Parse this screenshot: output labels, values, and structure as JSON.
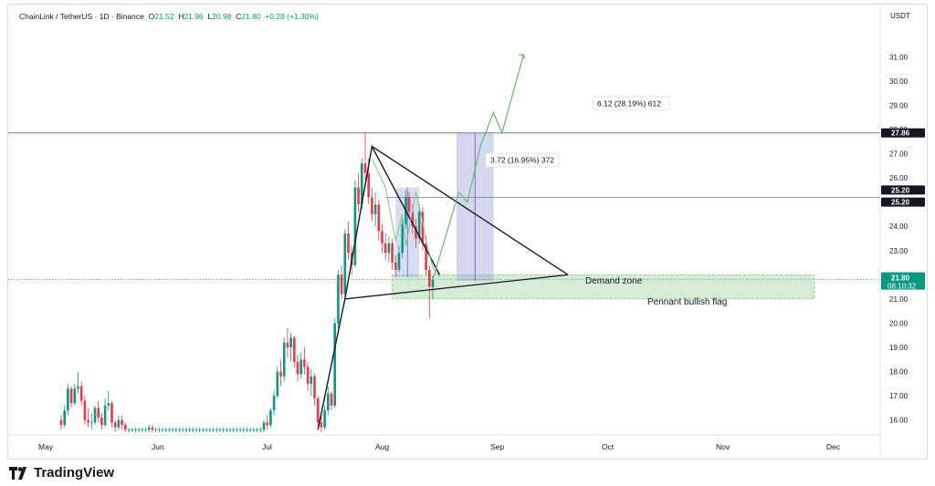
{
  "header": {
    "symbol": "ChainLink / TetherUS · 1D · Binance",
    "open_label": "O",
    "open": "21.52",
    "high_label": "H",
    "high": "21.96",
    "low_label": "L",
    "low": "20.98",
    "close_label": "C",
    "close": "21.80",
    "change": "+0.28 (+1.30%)"
  },
  "brand": {
    "name": "TradingView"
  },
  "chart_data": {
    "type": "candlestick",
    "quote_currency": "USDT",
    "ylim": [
      15.5,
      31.5
    ],
    "y_ticks": [
      "16.00",
      "17.00",
      "18.00",
      "19.00",
      "20.00",
      "21.00",
      "22.00",
      "23.00",
      "24.00",
      "25.00",
      "26.00",
      "27.00",
      "28.00",
      "29.00",
      "30.00",
      "31.00"
    ],
    "x_ticks": [
      "May",
      "Jun",
      "Jul",
      "Aug",
      "Sep",
      "Oct",
      "Nov",
      "Dec"
    ],
    "last_price": "21.80",
    "countdown": "08:10:32",
    "levels": [
      {
        "value": 27.86,
        "label": "27.86"
      },
      {
        "value": 25.2,
        "label": "25.20"
      },
      {
        "value": 25.2,
        "label": "25.20"
      }
    ],
    "annotations": [
      {
        "text": "3.72 (16.95%) 372"
      },
      {
        "text": "6.12 (28.19%) 612"
      },
      {
        "text": "Demand zone"
      },
      {
        "text": "Pennant bullish flag"
      }
    ],
    "demand_zone": [
      21.0,
      22.0
    ],
    "candles": [
      [
        16.0,
        16.2,
        15.6,
        15.8
      ],
      [
        15.8,
        16.6,
        15.7,
        16.4
      ],
      [
        16.4,
        17.5,
        16.2,
        17.3
      ],
      [
        17.3,
        17.4,
        16.5,
        16.7
      ],
      [
        16.7,
        17.5,
        16.6,
        17.3
      ],
      [
        17.3,
        18.0,
        17.1,
        17.4
      ],
      [
        17.4,
        17.6,
        16.6,
        16.8
      ],
      [
        16.8,
        17.0,
        15.8,
        16.0
      ],
      [
        16.0,
        16.5,
        15.7,
        15.9
      ],
      [
        15.9,
        16.3,
        15.6,
        15.9
      ],
      [
        15.9,
        16.6,
        15.8,
        16.5
      ],
      [
        16.5,
        16.8,
        15.9,
        16.1
      ],
      [
        16.1,
        16.3,
        15.6,
        15.8
      ],
      [
        15.8,
        16.9,
        15.7,
        16.6
      ],
      [
        16.6,
        17.2,
        16.4,
        16.7
      ],
      [
        16.7,
        16.8,
        15.7,
        15.9
      ],
      [
        15.9,
        16.0,
        15.5,
        15.7
      ],
      [
        15.7,
        16.2,
        15.6,
        16.0
      ],
      [
        16.0,
        16.2,
        15.6,
        15.8
      ],
      [
        15.8,
        15.9,
        15.5,
        15.6
      ],
      [
        15.6,
        15.7,
        15.5,
        15.6
      ],
      [
        15.6,
        15.7,
        15.5,
        15.6
      ],
      [
        15.6,
        15.7,
        15.5,
        15.6
      ],
      [
        15.6,
        15.7,
        15.5,
        15.6
      ],
      [
        15.6,
        15.7,
        15.5,
        15.6
      ],
      [
        15.6,
        15.7,
        15.5,
        15.6
      ],
      [
        15.6,
        15.8,
        15.5,
        15.7
      ],
      [
        15.7,
        15.8,
        15.5,
        15.6
      ],
      [
        15.6,
        15.7,
        15.5,
        15.6
      ],
      [
        15.6,
        15.7,
        15.5,
        15.6
      ],
      [
        15.6,
        15.7,
        15.5,
        15.6
      ],
      [
        15.6,
        15.7,
        15.5,
        15.6
      ],
      [
        15.6,
        15.7,
        15.5,
        15.6
      ],
      [
        15.6,
        15.7,
        15.5,
        15.6
      ],
      [
        15.6,
        15.7,
        15.5,
        15.6
      ],
      [
        15.6,
        15.7,
        15.5,
        15.6
      ],
      [
        15.6,
        15.7,
        15.5,
        15.6
      ],
      [
        15.6,
        15.7,
        15.5,
        15.6
      ],
      [
        15.6,
        15.7,
        15.5,
        15.6
      ],
      [
        15.6,
        15.7,
        15.5,
        15.6
      ],
      [
        15.6,
        15.7,
        15.5,
        15.6
      ],
      [
        15.6,
        15.7,
        15.5,
        15.6
      ],
      [
        15.6,
        15.7,
        15.5,
        15.6
      ],
      [
        15.6,
        15.7,
        15.5,
        15.6
      ],
      [
        15.6,
        15.7,
        15.5,
        15.6
      ],
      [
        15.6,
        15.7,
        15.5,
        15.6
      ],
      [
        15.6,
        15.7,
        15.5,
        15.6
      ],
      [
        15.6,
        15.7,
        15.5,
        15.6
      ],
      [
        15.6,
        15.7,
        15.5,
        15.6
      ],
      [
        15.6,
        15.7,
        15.5,
        15.6
      ],
      [
        15.6,
        15.7,
        15.5,
        15.6
      ],
      [
        15.6,
        15.7,
        15.5,
        15.6
      ],
      [
        15.6,
        15.7,
        15.5,
        15.6
      ],
      [
        15.6,
        15.7,
        15.5,
        15.6
      ],
      [
        15.6,
        15.7,
        15.5,
        15.6
      ],
      [
        15.6,
        15.7,
        15.5,
        15.6
      ],
      [
        15.6,
        15.7,
        15.5,
        15.6
      ],
      [
        15.6,
        15.7,
        15.5,
        15.6
      ],
      [
        15.6,
        15.7,
        15.5,
        15.6
      ],
      [
        15.6,
        15.7,
        15.5,
        15.6
      ],
      [
        15.6,
        16.0,
        15.5,
        15.9
      ],
      [
        15.9,
        16.2,
        15.6,
        15.8
      ],
      [
        15.8,
        16.5,
        15.7,
        16.4
      ],
      [
        16.4,
        17.2,
        16.2,
        17.0
      ],
      [
        17.0,
        18.2,
        16.9,
        18.0
      ],
      [
        18.0,
        18.5,
        17.4,
        17.8
      ],
      [
        17.8,
        19.4,
        17.6,
        19.2
      ],
      [
        19.2,
        19.8,
        18.6,
        19.0
      ],
      [
        19.0,
        19.6,
        18.4,
        19.4
      ],
      [
        19.4,
        19.5,
        18.2,
        18.4
      ],
      [
        18.4,
        18.7,
        17.6,
        17.9
      ],
      [
        17.9,
        18.8,
        17.7,
        18.5
      ],
      [
        18.5,
        19.0,
        17.9,
        18.2
      ],
      [
        18.2,
        18.4,
        17.2,
        17.5
      ],
      [
        17.5,
        18.1,
        17.0,
        17.8
      ],
      [
        17.8,
        17.9,
        16.6,
        16.9
      ],
      [
        16.9,
        17.0,
        15.7,
        15.9
      ],
      [
        15.9,
        16.3,
        15.5,
        15.7
      ],
      [
        15.7,
        16.6,
        15.6,
        16.4
      ],
      [
        16.4,
        17.4,
        16.2,
        17.1
      ],
      [
        17.1,
        17.2,
        16.4,
        16.6
      ],
      [
        16.6,
        20.2,
        16.5,
        20.0
      ],
      [
        20.0,
        22.2,
        19.8,
        22.0
      ],
      [
        22.0,
        22.4,
        21.0,
        21.2
      ],
      [
        21.2,
        23.9,
        21.1,
        23.7
      ],
      [
        23.7,
        24.2,
        22.6,
        22.9
      ],
      [
        22.9,
        23.2,
        22.0,
        22.4
      ],
      [
        22.4,
        25.9,
        22.3,
        25.6
      ],
      [
        25.6,
        26.2,
        24.6,
        24.9
      ],
      [
        24.9,
        26.8,
        24.7,
        26.6
      ],
      [
        26.6,
        27.9,
        25.9,
        26.2
      ],
      [
        26.2,
        26.8,
        24.9,
        25.2
      ],
      [
        25.2,
        25.6,
        24.2,
        24.5
      ],
      [
        24.5,
        25.4,
        24.0,
        24.9
      ],
      [
        24.9,
        25.1,
        23.4,
        23.8
      ],
      [
        23.8,
        24.1,
        22.9,
        23.3
      ],
      [
        23.3,
        23.7,
        22.6,
        22.9
      ],
      [
        22.9,
        23.6,
        22.5,
        23.3
      ],
      [
        23.3,
        23.5,
        22.2,
        22.5
      ],
      [
        22.5,
        22.8,
        21.9,
        22.2
      ],
      [
        22.2,
        23.2,
        22.1,
        22.9
      ],
      [
        22.9,
        24.3,
        22.7,
        24.1
      ],
      [
        24.1,
        25.5,
        23.9,
        25.2
      ],
      [
        25.2,
        25.4,
        24.3,
        24.6
      ],
      [
        24.6,
        24.9,
        23.7,
        24.0
      ],
      [
        24.0,
        24.3,
        23.1,
        23.5
      ],
      [
        23.5,
        24.9,
        23.3,
        24.6
      ],
      [
        24.6,
        24.8,
        23.0,
        23.3
      ],
      [
        23.3,
        23.6,
        22.0,
        22.2
      ],
      [
        22.2,
        22.4,
        20.2,
        21.5
      ],
      [
        21.5,
        21.96,
        20.98,
        21.8
      ]
    ],
    "projection": [
      [
        0,
        21.8
      ],
      [
        3,
        23.6
      ],
      [
        6,
        25.4
      ],
      [
        8,
        25.0
      ],
      [
        11,
        27.3
      ],
      [
        14,
        28.7
      ],
      [
        16,
        27.86
      ],
      [
        21,
        31.1
      ]
    ]
  }
}
